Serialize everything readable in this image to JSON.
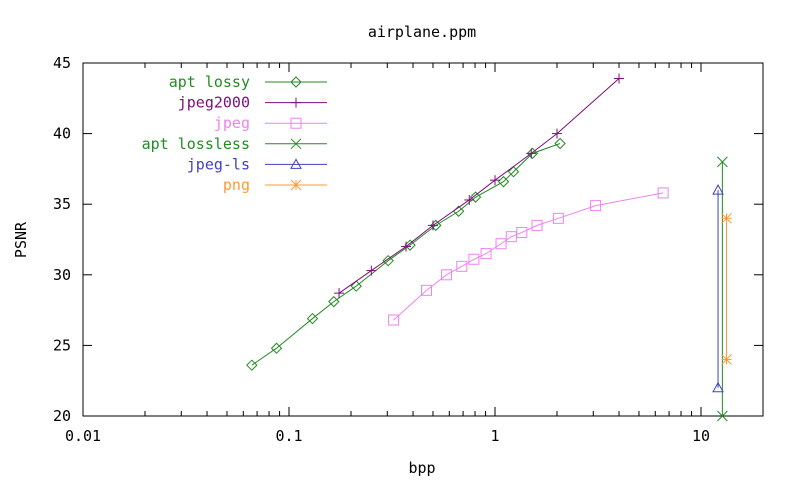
{
  "chart_data": {
    "type": "line",
    "title": "airplane.ppm",
    "xlabel": "bpp",
    "ylabel": "PSNR",
    "xscale": "log",
    "xlim": [
      0.01,
      20
    ],
    "ylim": [
      20,
      45
    ],
    "xticks": [
      {
        "value": 0.01,
        "label": "0.01"
      },
      {
        "value": 0.1,
        "label": "0.1"
      },
      {
        "value": 1,
        "label": "1"
      },
      {
        "value": 10,
        "label": "10"
      }
    ],
    "yticks": [
      {
        "value": 20,
        "label": "20"
      },
      {
        "value": 25,
        "label": "25"
      },
      {
        "value": 30,
        "label": "30"
      },
      {
        "value": 35,
        "label": "35"
      },
      {
        "value": 40,
        "label": "40"
      },
      {
        "value": 45,
        "label": "45"
      }
    ],
    "grid": false,
    "legend_position": "top-left",
    "series": [
      {
        "name": "apt lossy",
        "color": "#228b22",
        "marker": "diamond",
        "x": [
          0.066,
          0.087,
          0.13,
          0.165,
          0.212,
          0.303,
          0.387,
          0.516,
          0.666,
          0.805,
          1.1,
          1.23,
          1.52,
          2.07
        ],
        "y": [
          23.6,
          24.8,
          26.9,
          28.1,
          29.2,
          31.0,
          32.1,
          33.5,
          34.5,
          35.5,
          36.6,
          37.3,
          38.6,
          39.3
        ]
      },
      {
        "name": "jpeg2000",
        "color": "#7b0f7b",
        "marker": "plus",
        "x": [
          0.175,
          0.251,
          0.37,
          0.5,
          0.75,
          1.0,
          1.5,
          2.0,
          4.0
        ],
        "y": [
          28.7,
          30.3,
          32.0,
          33.5,
          35.3,
          36.7,
          38.6,
          40.0,
          43.9
        ]
      },
      {
        "name": "jpeg",
        "color": "#ee82ee",
        "marker": "square",
        "x": [
          0.322,
          0.465,
          0.582,
          0.69,
          0.79,
          0.905,
          1.07,
          1.2,
          1.35,
          1.6,
          2.03,
          3.08,
          6.55
        ],
        "y": [
          26.8,
          28.9,
          30.0,
          30.6,
          31.1,
          31.5,
          32.2,
          32.7,
          33.0,
          33.5,
          34.0,
          34.9,
          35.8
        ]
      },
      {
        "name": "apt lossless",
        "color": "#228b22",
        "marker": "x",
        "x": [
          12.7,
          12.7
        ],
        "y": [
          20.0,
          38.0
        ]
      },
      {
        "name": "jpeg-ls",
        "color": "#4040c0",
        "marker": "triangle",
        "x": [
          12.1,
          12.1
        ],
        "y": [
          22.0,
          36.0
        ]
      },
      {
        "name": "png",
        "color": "#ff9933",
        "marker": "star",
        "x": [
          13.3,
          13.3
        ],
        "y": [
          24.0,
          34.0
        ]
      }
    ]
  }
}
